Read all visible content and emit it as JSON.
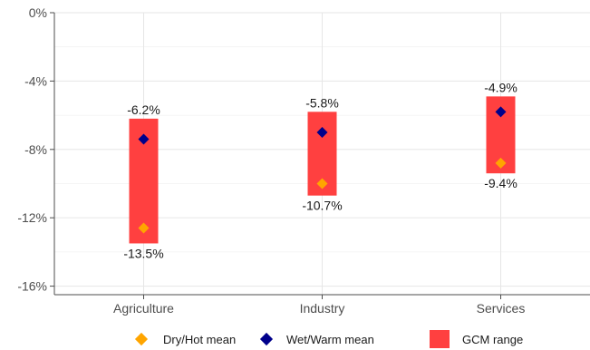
{
  "chart_data": {
    "type": "range-bar with point markers",
    "categories": [
      "Agriculture",
      "Industry",
      "Services"
    ],
    "ranges": [
      {
        "category": "Agriculture",
        "high": -6.2,
        "low": -13.5
      },
      {
        "category": "Industry",
        "high": -5.8,
        "low": -10.7
      },
      {
        "category": "Services",
        "high": -4.9,
        "low": -9.4
      }
    ],
    "series": [
      {
        "name": "Dry/Hot mean",
        "values": [
          -12.6,
          -10.0,
          -8.8
        ],
        "color": "#FFA500",
        "marker": "diamond"
      },
      {
        "name": "Wet/Warm mean",
        "values": [
          -7.4,
          -7.0,
          -5.8
        ],
        "color": "#00008B",
        "marker": "diamond"
      }
    ],
    "range_series": {
      "name": "GCM range",
      "color": "#FF4040"
    },
    "range_labels": {
      "high": [
        "-6.2%",
        "-5.8%",
        "-4.9%"
      ],
      "low": [
        "-13.5%",
        "-10.7%",
        "-9.4%"
      ]
    },
    "y_ticks": [
      0,
      -4,
      -8,
      -12,
      -16
    ],
    "y_tick_labels": [
      "0%",
      "-4%",
      "-8%",
      "-12%",
      "-16%"
    ],
    "ylim": [
      -16.5,
      0
    ],
    "grid": true,
    "legend_position": "bottom",
    "title": "",
    "xlabel": "",
    "ylabel": ""
  }
}
